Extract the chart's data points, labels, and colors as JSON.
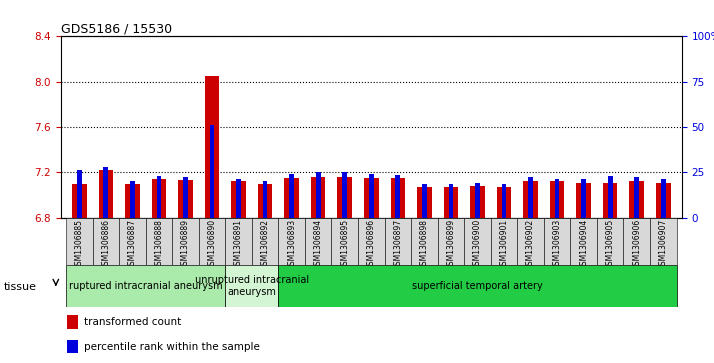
{
  "title": "GDS5186 / 15530",
  "samples": [
    "GSM1306885",
    "GSM1306886",
    "GSM1306887",
    "GSM1306888",
    "GSM1306889",
    "GSM1306890",
    "GSM1306891",
    "GSM1306892",
    "GSM1306893",
    "GSM1306894",
    "GSM1306895",
    "GSM1306896",
    "GSM1306897",
    "GSM1306898",
    "GSM1306899",
    "GSM1306900",
    "GSM1306901",
    "GSM1306902",
    "GSM1306903",
    "GSM1306904",
    "GSM1306905",
    "GSM1306906",
    "GSM1306907"
  ],
  "red_values": [
    7.1,
    7.22,
    7.1,
    7.14,
    7.13,
    8.05,
    7.12,
    7.1,
    7.15,
    7.16,
    7.16,
    7.15,
    7.15,
    7.07,
    7.07,
    7.08,
    7.07,
    7.12,
    7.12,
    7.11,
    7.11,
    7.12,
    7.11
  ],
  "blue_values": [
    7.22,
    7.25,
    7.12,
    7.17,
    7.16,
    7.62,
    7.14,
    7.12,
    7.19,
    7.2,
    7.2,
    7.19,
    7.18,
    7.1,
    7.1,
    7.11,
    7.1,
    7.16,
    7.14,
    7.14,
    7.17,
    7.16,
    7.14
  ],
  "ylim_left": [
    6.8,
    8.4
  ],
  "ylim_right": [
    0,
    100
  ],
  "yticks_left": [
    6.8,
    7.2,
    7.6,
    8.0,
    8.4
  ],
  "yticks_right": [
    0,
    25,
    50,
    75,
    100
  ],
  "ytick_labels_right": [
    "0",
    "25",
    "50",
    "75",
    "100%"
  ],
  "group_configs": [
    {
      "label": "ruptured intracranial aneurysm",
      "start": 0,
      "end": 5,
      "color": "#aaeaaa"
    },
    {
      "label": "unruptured intracranial\naneurysm",
      "start": 6,
      "end": 7,
      "color": "#d4f5d4"
    },
    {
      "label": "superficial temporal artery",
      "start": 8,
      "end": 22,
      "color": "#22cc44"
    }
  ],
  "tissue_label": "tissue",
  "legend_red": "transformed count",
  "legend_blue": "percentile rank within the sample",
  "bar_width": 0.55,
  "plot_bg": "#ffffff",
  "red_color": "#cc0000",
  "blue_color": "#0000dd",
  "grid_color": "#000000",
  "left_tick_color": "#cc0000",
  "right_tick_color": "#0000dd"
}
